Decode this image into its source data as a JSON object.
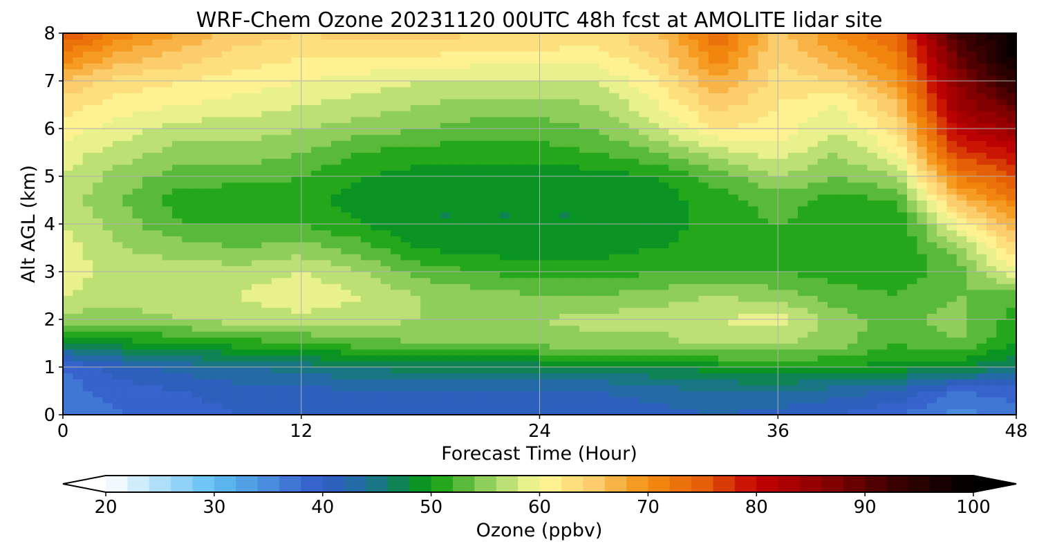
{
  "chart_data": {
    "type": "heatmap",
    "title": "WRF-Chem Ozone  20231120 00UTC 48h fcst at AMOLITE lidar site",
    "xlabel": "Forecast Time (Hour)",
    "ylabel": "Alt AGL (km)",
    "xlim": [
      0,
      48
    ],
    "ylim": [
      0,
      8
    ],
    "x_ticks": [
      "0",
      "12",
      "24",
      "36",
      "48"
    ],
    "y_ticks": [
      "0",
      "1",
      "2",
      "3",
      "4",
      "5",
      "6",
      "7",
      "8"
    ],
    "grid": true,
    "x": [
      0,
      3,
      6,
      9,
      12,
      15,
      18,
      21,
      24,
      27,
      30,
      33,
      36,
      39,
      42,
      45,
      48
    ],
    "y": [
      0,
      0.5,
      1,
      1.5,
      2,
      2.5,
      3,
      3.5,
      4,
      4.5,
      5,
      5.5,
      6,
      6.5,
      7,
      7.5,
      8
    ],
    "z_rows_by_altitude": [
      [
        36,
        38,
        39,
        40,
        40,
        40,
        41,
        41,
        40,
        40,
        41,
        42,
        41,
        40,
        38,
        35,
        37
      ],
      [
        37,
        39,
        40,
        41,
        41,
        42,
        42,
        42,
        42,
        42,
        43,
        44,
        44,
        43,
        42,
        38,
        39
      ],
      [
        38,
        41,
        43,
        44,
        45,
        46,
        47,
        47,
        47,
        47,
        48,
        49,
        50,
        50,
        49,
        48,
        46
      ],
      [
        47,
        49,
        50,
        51,
        52,
        53,
        54,
        54,
        55,
        55,
        55,
        57,
        56,
        55,
        52,
        54,
        50
      ],
      [
        55,
        55,
        56,
        57,
        57,
        57,
        56,
        56,
        56,
        57,
        57,
        58,
        59,
        55,
        53,
        55,
        51
      ],
      [
        58,
        57,
        57,
        58,
        60,
        58,
        56,
        55,
        54,
        54,
        55,
        56,
        55,
        53,
        52,
        54,
        53
      ],
      [
        59,
        57,
        57,
        57,
        58,
        56,
        53,
        52,
        51,
        51,
        52,
        52,
        52,
        51,
        51,
        53,
        60
      ],
      [
        59,
        56,
        55,
        54,
        55,
        53,
        50,
        49,
        49,
        49,
        50,
        51,
        52,
        51,
        50,
        55,
        64
      ],
      [
        58,
        55,
        52,
        52,
        52,
        50,
        48,
        48,
        48,
        48,
        49,
        51,
        52,
        51,
        50,
        60,
        68
      ],
      [
        57,
        54,
        51,
        50,
        51,
        49,
        48,
        48,
        48,
        48,
        49,
        51,
        53,
        51,
        52,
        66,
        72
      ],
      [
        58,
        55,
        53,
        53,
        52,
        50,
        49,
        49,
        49,
        49,
        50,
        53,
        56,
        54,
        56,
        72,
        76
      ],
      [
        59,
        57,
        55,
        55,
        54,
        52,
        51,
        51,
        51,
        52,
        54,
        57,
        59,
        56,
        60,
        77,
        80
      ],
      [
        61,
        59,
        57,
        57,
        56,
        55,
        54,
        53,
        53,
        54,
        58,
        62,
        61,
        58,
        63,
        81,
        85
      ],
      [
        63,
        61,
        60,
        59,
        58,
        57,
        56,
        55,
        55,
        56,
        60,
        65,
        62,
        60,
        66,
        84,
        90
      ],
      [
        66,
        63,
        62,
        61,
        60,
        59,
        58,
        58,
        58,
        58,
        62,
        68,
        63,
        64,
        69,
        86,
        95
      ],
      [
        71,
        67,
        65,
        63,
        62,
        62,
        62,
        61,
        61,
        61,
        64,
        71,
        64,
        68,
        72,
        89,
        99
      ],
      [
        76,
        71,
        68,
        65,
        64,
        65,
        65,
        64,
        64,
        63,
        66,
        74,
        65,
        70,
        74,
        92,
        100
      ]
    ],
    "colorbar": {
      "label": "Ozone  (ppbv)",
      "min": 20,
      "max": 100,
      "step": 2,
      "extend": "both",
      "ticks": [
        "20",
        "30",
        "40",
        "50",
        "60",
        "70",
        "80",
        "90",
        "100"
      ],
      "color_stops": [
        {
          "value": 20,
          "color": "#ffffff"
        },
        {
          "value": 30,
          "color": "#5fbef2"
        },
        {
          "value": 40,
          "color": "#3259c8"
        },
        {
          "value": 44,
          "color": "#1e6f9a"
        },
        {
          "value": 48,
          "color": "#0b8a3c"
        },
        {
          "value": 50,
          "color": "#099d0a"
        },
        {
          "value": 55,
          "color": "#8fce5a"
        },
        {
          "value": 60,
          "color": "#fffa9a"
        },
        {
          "value": 65,
          "color": "#fbcd6c"
        },
        {
          "value": 70,
          "color": "#f58e10"
        },
        {
          "value": 75,
          "color": "#e45f06"
        },
        {
          "value": 80,
          "color": "#c40202"
        },
        {
          "value": 86,
          "color": "#8d0000"
        },
        {
          "value": 93,
          "color": "#380000"
        },
        {
          "value": 100,
          "color": "#000000"
        }
      ]
    }
  }
}
